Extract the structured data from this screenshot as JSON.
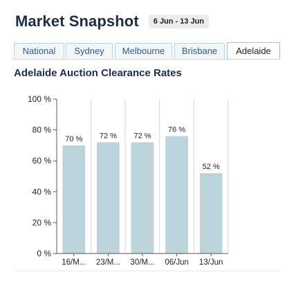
{
  "header": {
    "title": "Market Snapshot",
    "date_range": "6 Jun - 13 Jun"
  },
  "tabs": [
    {
      "label": "National",
      "active": false
    },
    {
      "label": "Sydney",
      "active": false
    },
    {
      "label": "Melbourne",
      "active": false
    },
    {
      "label": "Brisbane",
      "active": false
    },
    {
      "label": "Adelaide",
      "active": true
    }
  ],
  "colors": {
    "bar": "#bcd3db",
    "grid": "#cfd5e0",
    "axis": "#555555",
    "tab_border": "#b9cfe2",
    "tab_text": "#2a5d8f"
  },
  "chart_data": {
    "type": "bar",
    "title": "Adelaide Auction Clearance Rates",
    "categories": [
      "16/M...",
      "23/M...",
      "30/M...",
      "06/Jun",
      "13/Jun"
    ],
    "values": [
      70,
      72,
      72,
      76,
      52
    ],
    "data_labels": [
      "70 %",
      "72 %",
      "72 %",
      "76 %",
      "52 %"
    ],
    "y_ticks": [
      0,
      20,
      40,
      60,
      80,
      100
    ],
    "y_tick_labels": [
      "0 %",
      "20 %",
      "40 %",
      "60 %",
      "80 %",
      "100 %"
    ],
    "ylim": [
      0,
      100
    ],
    "grid": "vertical",
    "legend": "none"
  }
}
